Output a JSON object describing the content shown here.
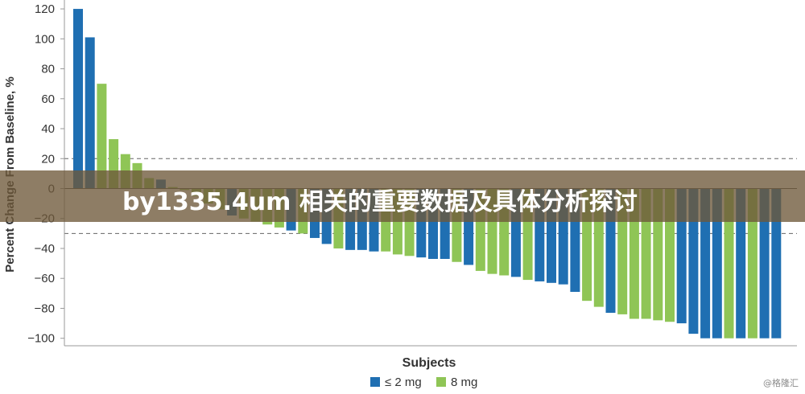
{
  "chart_data": {
    "type": "bar",
    "xlabel": "Subjects",
    "ylabel": "Percent Change From Baseline, %",
    "ylim": [
      -105,
      122
    ],
    "yticks": [
      120,
      100,
      80,
      60,
      40,
      20,
      0,
      -20,
      -40,
      -60,
      -80,
      -100
    ],
    "ytick_labels": [
      "120",
      "100",
      "80",
      "60",
      "40",
      "20",
      "0",
      "−20",
      "−40",
      "−60",
      "−80",
      "−100"
    ],
    "reference_lines": [
      20,
      -30
    ],
    "grid": false,
    "legend_position": "bottom",
    "series": [
      {
        "name": "≤ 2 mg",
        "color": "#1f6fb2"
      },
      {
        "name": "8 mg",
        "color": "#8fc556"
      }
    ],
    "values": [
      120,
      101,
      70,
      33,
      23,
      17,
      7,
      6,
      1,
      -1,
      -5,
      -10,
      -14,
      -18,
      -20,
      -22,
      -24,
      -26,
      -28,
      -30,
      -33,
      -37,
      -40,
      -41,
      -41,
      -42,
      -42,
      -44,
      -45,
      -46,
      -47,
      -47,
      -49,
      -51,
      -55,
      -57,
      -58,
      -59,
      -61,
      -62,
      -63,
      -64,
      -69,
      -75,
      -79,
      -83,
      -84,
      -87,
      -87,
      -88,
      -89,
      -90,
      -97,
      -100,
      -100,
      -100,
      -100,
      -100,
      -100,
      -100
    ],
    "groups": [
      0,
      0,
      1,
      1,
      1,
      1,
      1,
      0,
      1,
      1,
      1,
      1,
      1,
      0,
      1,
      1,
      1,
      1,
      0,
      1,
      0,
      0,
      1,
      0,
      0,
      0,
      1,
      1,
      1,
      0,
      0,
      0,
      1,
      0,
      1,
      1,
      1,
      0,
      1,
      0,
      0,
      0,
      0,
      1,
      1,
      0,
      1,
      1,
      1,
      1,
      1,
      0,
      0,
      0,
      0,
      1,
      0,
      1,
      0,
      0
    ]
  },
  "banner": {
    "text": "by1335.4um 相关的重要数据及具体分析探讨"
  },
  "watermark": {
    "text": "@格隆汇"
  }
}
